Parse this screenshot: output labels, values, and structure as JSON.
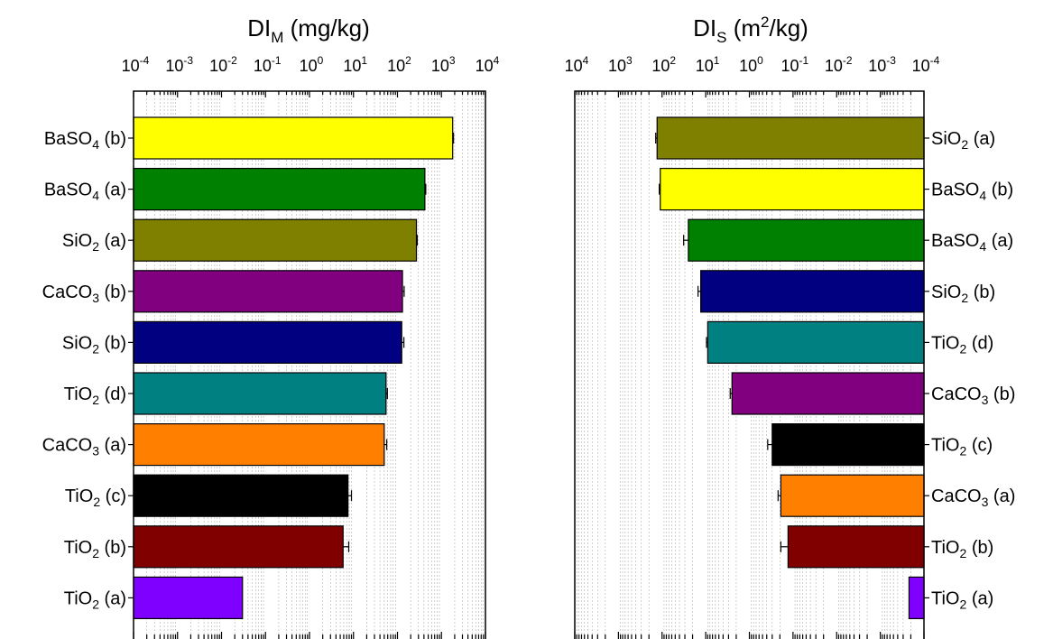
{
  "chart_data": [
    {
      "type": "bar",
      "orientation": "horizontal",
      "title_main": "DI",
      "title_sub": "M",
      "title_rest": " (mg/kg)",
      "x_scale": "log",
      "x_reversed": false,
      "xlim": [
        0.0001,
        10000
      ],
      "x_ticks": [
        {
          "base": "10",
          "exp": "-4"
        },
        {
          "base": "10",
          "exp": "-3"
        },
        {
          "base": "10",
          "exp": "-2"
        },
        {
          "base": "10",
          "exp": "-1"
        },
        {
          "base": "10",
          "exp": "0"
        },
        {
          "base": "10",
          "exp": "1"
        },
        {
          "base": "10",
          "exp": "2"
        },
        {
          "base": "10",
          "exp": "3"
        },
        {
          "base": "10",
          "exp": "4"
        }
      ],
      "grid": true,
      "label_side": "left",
      "bars": [
        {
          "label": "BaSO",
          "sub": "4",
          "suffix": " (b)",
          "value": 1800,
          "err": 80,
          "color": "#ffff00"
        },
        {
          "label": "BaSO",
          "sub": "4",
          "suffix": " (a)",
          "value": 420,
          "err": 20,
          "color": "#008000"
        },
        {
          "label": "SiO",
          "sub": "2",
          "suffix": " (a)",
          "value": 270,
          "err": 12,
          "color": "#808000"
        },
        {
          "label": "CaCO",
          "sub": "3",
          "suffix": " (b)",
          "value": 130,
          "err": 12,
          "color": "#800080"
        },
        {
          "label": "SiO",
          "sub": "2",
          "suffix": " (b)",
          "value": 125,
          "err": 15,
          "color": "#000080"
        },
        {
          "label": "TiO",
          "sub": "2",
          "suffix": " (d)",
          "value": 55,
          "err": 4,
          "color": "#008080"
        },
        {
          "label": "CaCO",
          "sub": "3",
          "suffix": " (a)",
          "value": 50,
          "err": 7,
          "color": "#ff8000"
        },
        {
          "label": "TiO",
          "sub": "2",
          "suffix": " (c)",
          "value": 7.5,
          "err": 1.5,
          "color": "#000000"
        },
        {
          "label": "TiO",
          "sub": "2",
          "suffix": " (b)",
          "value": 5.8,
          "err": 2.0,
          "color": "#800000"
        },
        {
          "label": "TiO",
          "sub": "2",
          "suffix": " (a)",
          "value": 0.03,
          "err": 0,
          "color": "#8000ff"
        }
      ]
    },
    {
      "type": "bar",
      "orientation": "horizontal",
      "title_main": "DI",
      "title_sub": "S",
      "title_rest": " (m",
      "title_sup": "2",
      "title_end": "/kg)",
      "x_scale": "log",
      "x_reversed": true,
      "xlim": [
        10000,
        0.0001
      ],
      "x_ticks": [
        {
          "base": "10",
          "exp": "4"
        },
        {
          "base": "10",
          "exp": "3"
        },
        {
          "base": "10",
          "exp": "2"
        },
        {
          "base": "10",
          "exp": "1"
        },
        {
          "base": "10",
          "exp": "0"
        },
        {
          "base": "10",
          "exp": "-1"
        },
        {
          "base": "10",
          "exp": "-2"
        },
        {
          "base": "10",
          "exp": "-3"
        },
        {
          "base": "10",
          "exp": "-4"
        }
      ],
      "grid": true,
      "label_side": "right",
      "bars": [
        {
          "label": "SiO",
          "sub": "2",
          "suffix": " (a)",
          "value": 130,
          "err": 10,
          "color": "#808000"
        },
        {
          "label": "BaSO",
          "sub": "4",
          "suffix": " (b)",
          "value": 110,
          "err": 6,
          "color": "#ffff00"
        },
        {
          "label": "BaSO",
          "sub": "4",
          "suffix": " (a)",
          "value": 25,
          "err": 7,
          "color": "#008000"
        },
        {
          "label": "SiO",
          "sub": "2",
          "suffix": " (b)",
          "value": 13,
          "err": 2,
          "color": "#000080"
        },
        {
          "label": "TiO",
          "sub": "2",
          "suffix": " (d)",
          "value": 9,
          "err": 0.6,
          "color": "#008080"
        },
        {
          "label": "CaCO",
          "sub": "3",
          "suffix": " (b)",
          "value": 2.5,
          "err": 0.25,
          "color": "#800080"
        },
        {
          "label": "TiO",
          "sub": "2",
          "suffix": " (c)",
          "value": 0.3,
          "err": 0.08,
          "color": "#000000"
        },
        {
          "label": "CaCO",
          "sub": "3",
          "suffix": " (a)",
          "value": 0.19,
          "err": 0.03,
          "color": "#ff8000"
        },
        {
          "label": "TiO",
          "sub": "2",
          "suffix": " (b)",
          "value": 0.13,
          "err": 0.06,
          "color": "#800000"
        },
        {
          "label": "TiO",
          "sub": "2",
          "suffix": " (a)",
          "value": 0.00022,
          "err": 0,
          "color": "#8000ff"
        }
      ]
    }
  ]
}
